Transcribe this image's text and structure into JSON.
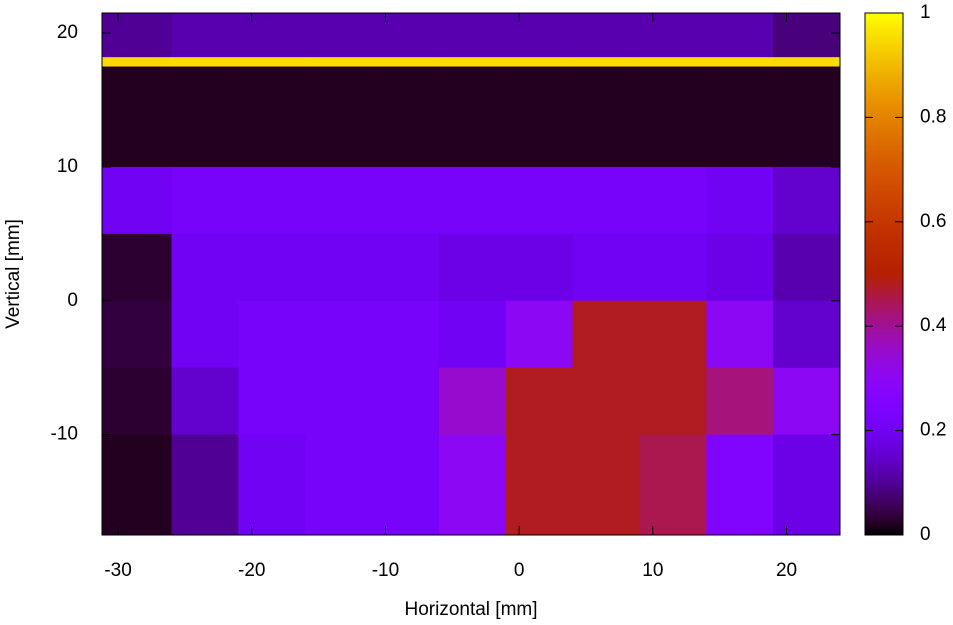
{
  "chart_data": {
    "type": "heatmap",
    "xlabel": "Horizontal [mm]",
    "ylabel": "Vertical [mm]",
    "colormap": "gnuplot",
    "xbins": [
      -31.2,
      -26,
      -21,
      -16,
      -11,
      -6,
      -1,
      4,
      9,
      14,
      19,
      24
    ],
    "ybins": [
      21.5,
      18.2,
      17.5,
      10,
      5,
      0,
      -5,
      -10,
      -17.5
    ],
    "z": [
      [
        0.1,
        0.12,
        0.12,
        0.12,
        0.12,
        0.12,
        0.12,
        0.12,
        0.12,
        0.12,
        0.08
      ],
      [
        0.95,
        0.95,
        0.95,
        0.95,
        0.95,
        0.95,
        0.95,
        0.95,
        0.95,
        0.95,
        0.95
      ],
      [
        0.02,
        0.02,
        0.02,
        0.02,
        0.02,
        0.02,
        0.02,
        0.02,
        0.02,
        0.02,
        0.02
      ],
      [
        0.2,
        0.22,
        0.22,
        0.22,
        0.22,
        0.22,
        0.22,
        0.22,
        0.22,
        0.2,
        0.15
      ],
      [
        0.03,
        0.2,
        0.2,
        0.2,
        0.2,
        0.18,
        0.18,
        0.2,
        0.2,
        0.18,
        0.12
      ],
      [
        0.04,
        0.2,
        0.22,
        0.22,
        0.22,
        0.2,
        0.3,
        0.48,
        0.48,
        0.3,
        0.15
      ],
      [
        0.03,
        0.15,
        0.22,
        0.22,
        0.22,
        0.35,
        0.48,
        0.48,
        0.48,
        0.42,
        0.3
      ],
      [
        0.02,
        0.1,
        0.2,
        0.22,
        0.22,
        0.3,
        0.48,
        0.48,
        0.45,
        0.25,
        0.18
      ]
    ],
    "xlim": [
      -31.2,
      24
    ],
    "ylim": [
      -17.5,
      21.5
    ],
    "xticks": [
      -30,
      -20,
      -10,
      0,
      10,
      20
    ],
    "yticks": [
      -10,
      0,
      10,
      20
    ],
    "clim": [
      0,
      1
    ],
    "cticks": [
      0,
      0.2,
      0.4,
      0.6,
      0.8,
      1
    ]
  }
}
